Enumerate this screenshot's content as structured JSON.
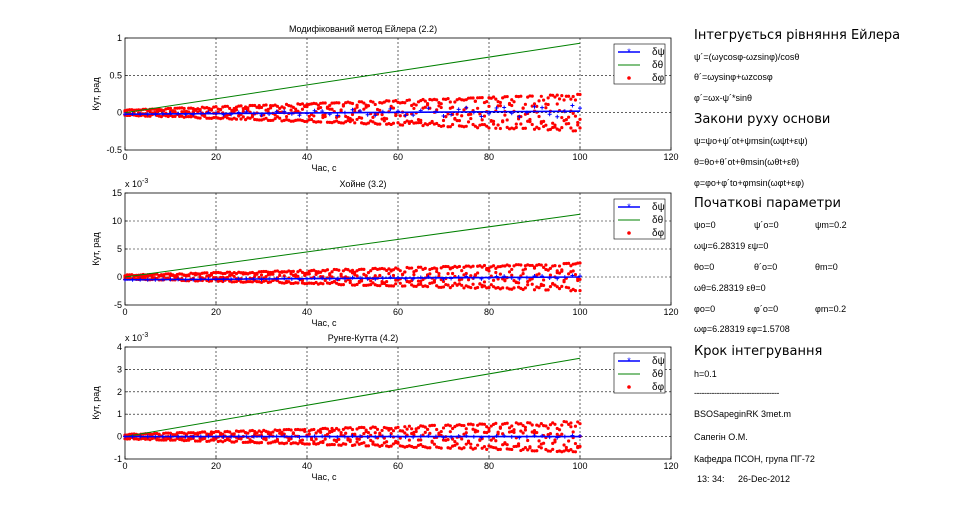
{
  "colors": {
    "psi": "#0000ff",
    "theta": "#008000",
    "phi": "#ff0000",
    "grid": "#000000"
  },
  "chart_data": [
    {
      "type": "line",
      "title": "Модифікований метод Ейлера (2.2)",
      "xlabel": "Час, с",
      "ylabel": "Кут, рад",
      "exponent": "",
      "xlim": [
        0,
        120
      ],
      "ylim": [
        -0.5,
        1
      ],
      "xticks": [
        0,
        20,
        40,
        60,
        80,
        100,
        120
      ],
      "yticks": [
        -0.5,
        0,
        0.5,
        1
      ],
      "ytick_labels": [
        "-0.5",
        "0",
        "0.5",
        "1"
      ],
      "grid": true,
      "legend_position": "top-right",
      "series": [
        {
          "name": "δψ",
          "key": "psi",
          "marker": "star",
          "x": [
            0,
            100
          ],
          "y": [
            -0.02,
            0.02
          ],
          "envelope": 0.08
        },
        {
          "name": "δθ",
          "key": "theta",
          "marker": "line",
          "x": [
            0,
            100
          ],
          "y": [
            0,
            0.93
          ]
        },
        {
          "name": "δφ",
          "key": "phi",
          "marker": "dot",
          "x": [
            0,
            100
          ],
          "y": [
            0,
            0
          ],
          "envelope": 0.25
        }
      ]
    },
    {
      "type": "line",
      "title": "Хойне (3.2)",
      "xlabel": "Час, с",
      "ylabel": "Кут, рад",
      "exponent": "x 10-3",
      "xlim": [
        0,
        120
      ],
      "ylim": [
        -5,
        15
      ],
      "xticks": [
        0,
        20,
        40,
        60,
        80,
        100,
        120
      ],
      "yticks": [
        -5,
        0,
        5,
        10,
        15
      ],
      "ytick_labels": [
        "-5",
        "0",
        "5",
        "10",
        "15"
      ],
      "grid": true,
      "legend_position": "top-right",
      "series": [
        {
          "name": "δψ",
          "key": "psi",
          "marker": "star",
          "x": [
            0,
            100
          ],
          "y": [
            -0.5,
            0
          ],
          "envelope": 0.3
        },
        {
          "name": "δθ",
          "key": "theta",
          "marker": "line",
          "x": [
            0,
            100
          ],
          "y": [
            0,
            11.2
          ]
        },
        {
          "name": "δφ",
          "key": "phi",
          "marker": "dot",
          "x": [
            0,
            100
          ],
          "y": [
            0,
            0
          ],
          "envelope": 2.5
        }
      ]
    },
    {
      "type": "line",
      "title": "Рунге-Кутта (4.2)",
      "xlabel": "Час, с",
      "ylabel": "Кут, рад",
      "exponent": "x 10-3",
      "xlim": [
        0,
        120
      ],
      "ylim": [
        -1,
        4
      ],
      "xticks": [
        0,
        20,
        40,
        60,
        80,
        100,
        120
      ],
      "yticks": [
        -1,
        0,
        1,
        2,
        3,
        4
      ],
      "ytick_labels": [
        "-1",
        "0",
        "1",
        "2",
        "3",
        "4"
      ],
      "grid": true,
      "legend_position": "top-right",
      "series": [
        {
          "name": "δψ",
          "key": "psi",
          "marker": "star",
          "x": [
            0,
            100
          ],
          "y": [
            0,
            0
          ],
          "envelope": 0.05
        },
        {
          "name": "δθ",
          "key": "theta",
          "marker": "line",
          "x": [
            0,
            100
          ],
          "y": [
            0,
            3.5
          ]
        },
        {
          "name": "δφ",
          "key": "phi",
          "marker": "dot",
          "x": [
            0,
            100
          ],
          "y": [
            0,
            0
          ],
          "envelope": 0.7
        }
      ]
    }
  ],
  "panel": {
    "heading_equations": "Інтегрується рівняння Ейлера",
    "eq1": "ψ´=(ωycosφ-ωzsinφ)/cosθ",
    "eq2": "θ´=ωysinφ+ωzcosφ",
    "eq3": "φ´=ωx-ψ´*sinθ",
    "heading_motion": "Закони руху основи",
    "law1": "ψ=ψo+ψ´ot+ψmsin(ωψt+εψ)",
    "law2": "θ=θo+θ´ot+θmsin(ωθt+εθ)",
    "law3": "φ=φo+φ´to+φmsin(ωφt+εφ)",
    "heading_params": "Початкові параметри",
    "p_row1": [
      "ψo=0",
      "ψ´o=0",
      "ψm=0.2"
    ],
    "p_row2": "ωψ=6.28319   εψ=0",
    "p_row3": [
      "θo=0",
      "θ´o=0",
      "θm=0"
    ],
    "p_row4": "ωθ=6.28319   εθ=0",
    "p_row5": [
      "φo=0",
      "φ´o=0",
      "φm=0.2"
    ],
    "p_row6": "ωφ=6.28319   εφ=1.5708",
    "heading_step": "Крок інтегрування",
    "step": "h=0.1",
    "separator": "----------------------------------",
    "file": "BSOSapeginRK 3met.m",
    "author": "Сапегін О.М.",
    "dept": "Кафедра ПСОН, група ПГ-72",
    "time": "13: 34:",
    "date": "26-Dec-2012"
  }
}
